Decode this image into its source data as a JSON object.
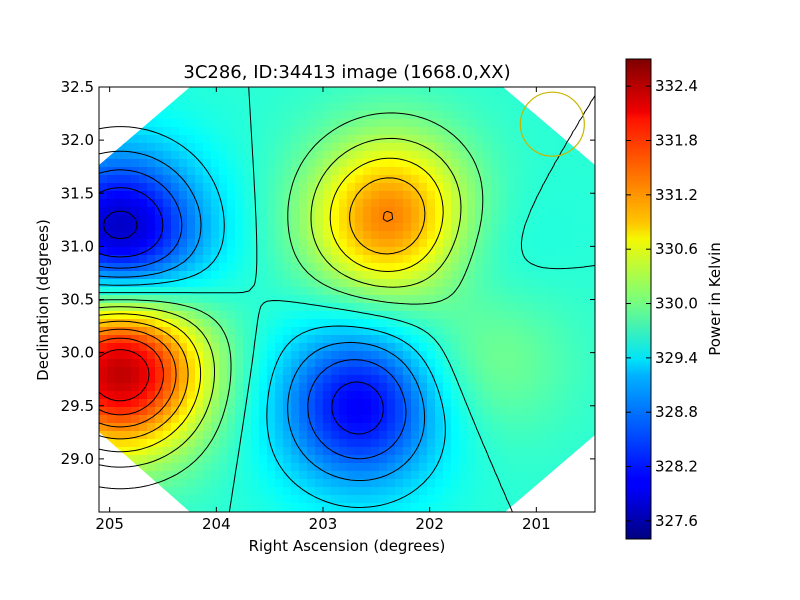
{
  "chart_data": {
    "type": "heatmap",
    "title": "3C286, ID:34413 image (1668.0,XX)",
    "xlabel": "Right Ascension (degrees)",
    "ylabel": "Declination (degrees)",
    "colorbar_label": "Power in Kelvin",
    "xlim": [
      205.1,
      200.45
    ],
    "ylim": [
      28.5,
      32.5
    ],
    "x_ticks": [
      205,
      204,
      203,
      202,
      201
    ],
    "y_ticks": [
      29.0,
      29.5,
      30.0,
      30.5,
      31.0,
      31.5,
      32.0,
      32.5
    ],
    "y_tick_labels": [
      "29.0",
      "29.5",
      "30.0",
      "30.5",
      "31.0",
      "31.5",
      "32.0",
      "32.5"
    ],
    "colorbar_range": [
      327.4,
      332.7
    ],
    "colorbar_ticks": [
      327.6,
      328.2,
      328.8,
      329.4,
      330.0,
      330.6,
      331.2,
      331.8,
      332.4
    ],
    "colorbar_tick_labels": [
      "327.6",
      "328.2",
      "328.8",
      "329.4",
      "330.0",
      "330.6",
      "331.2",
      "331.8",
      "332.4"
    ],
    "colormap": "jet",
    "contour_color": "#000000",
    "background_value": 329.6,
    "features": [
      {
        "ra": 204.9,
        "dec": 29.85,
        "value": 332.5
      },
      {
        "ra": 204.9,
        "dec": 31.1,
        "value": 327.6
      },
      {
        "ra": 202.35,
        "dec": 31.25,
        "value": 331.5
      },
      {
        "ra": 202.65,
        "dec": 29.5,
        "value": 328.0
      },
      {
        "ra": 201.7,
        "dec": 30.85,
        "value": 329.2
      },
      {
        "ra": 201.5,
        "dec": 30.0,
        "value": 330.1
      }
    ],
    "beam_circle": {
      "ra": 200.85,
      "dec": 32.15,
      "radius_deg": 0.3,
      "color": "#c8b400"
    }
  }
}
